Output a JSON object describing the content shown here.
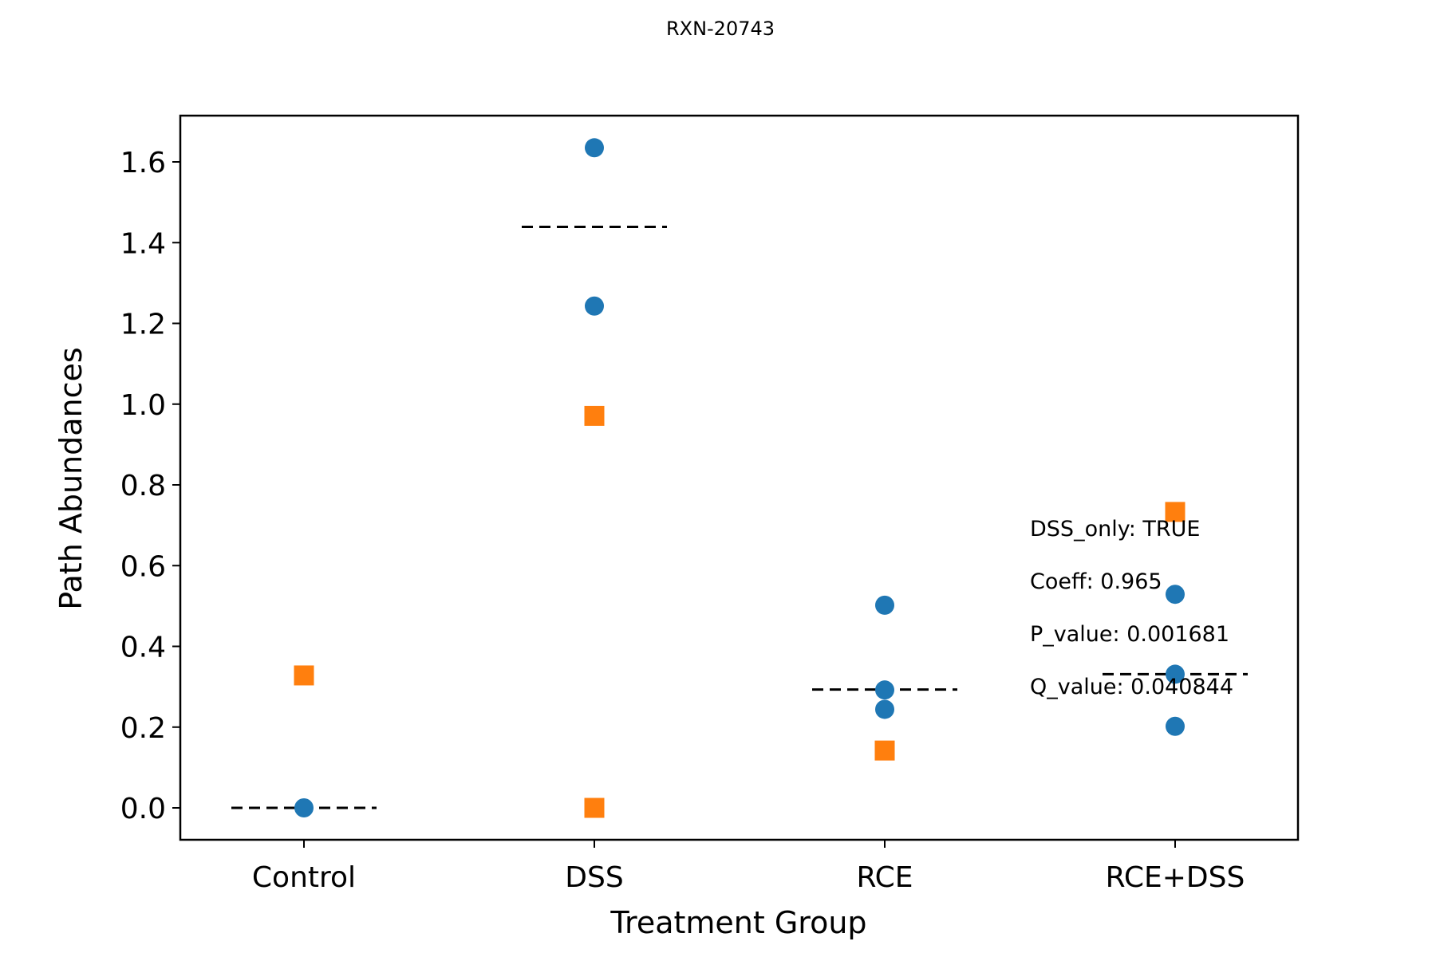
{
  "chart_data": {
    "type": "scatter",
    "title": "RXN-20743",
    "xlabel": "Treatment Group",
    "ylabel": "Path Abundances",
    "categories": [
      "Control",
      "DSS",
      "RCE",
      "RCE+DSS"
    ],
    "ylim": [
      -0.08,
      1.71
    ],
    "yticks": [
      "0.0",
      "0.2",
      "0.4",
      "0.6",
      "0.8",
      "1.0",
      "1.2",
      "1.4",
      "1.6"
    ],
    "grid": false,
    "colors": {
      "circle": "#1f77b4",
      "square": "#ff7f0e",
      "mean_line": "#000000"
    },
    "series": [
      {
        "marker": "circle",
        "points": [
          {
            "category": "Control",
            "y": 0.0
          },
          {
            "category": "DSS",
            "y": 1.635
          },
          {
            "category": "DSS",
            "y": 1.243
          },
          {
            "category": "RCE",
            "y": 0.502
          },
          {
            "category": "RCE",
            "y": 0.292
          },
          {
            "category": "RCE",
            "y": 0.244
          },
          {
            "category": "RCE+DSS",
            "y": 0.529
          },
          {
            "category": "RCE+DSS",
            "y": 0.331
          },
          {
            "category": "RCE+DSS",
            "y": 0.202
          }
        ]
      },
      {
        "marker": "square",
        "points": [
          {
            "category": "Control",
            "y": 0.328
          },
          {
            "category": "DSS",
            "y": 0.971
          },
          {
            "category": "DSS",
            "y": 0.0
          },
          {
            "category": "RCE",
            "y": 0.142
          },
          {
            "category": "RCE+DSS",
            "y": 0.733
          }
        ]
      }
    ],
    "mean_lines": [
      {
        "category": "Control",
        "y": 0.0
      },
      {
        "category": "DSS",
        "y": 1.439
      },
      {
        "category": "RCE",
        "y": 0.293
      },
      {
        "category": "RCE+DSS",
        "y": 0.331
      }
    ],
    "annotations": [
      "DSS_only: TRUE",
      "Coeff: 0.965",
      "P_value: 0.001681",
      "Q_value: 0.040844"
    ]
  }
}
